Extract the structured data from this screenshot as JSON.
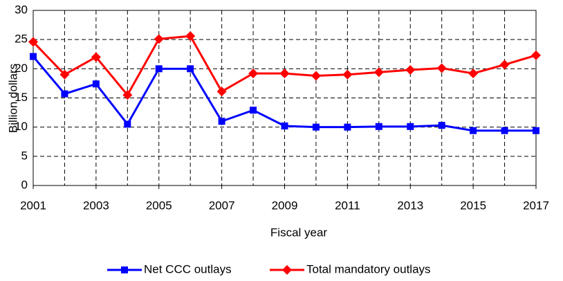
{
  "chart_data": {
    "type": "line",
    "x": [
      2001,
      2002,
      2003,
      2004,
      2005,
      2006,
      2007,
      2008,
      2009,
      2010,
      2011,
      2012,
      2013,
      2014,
      2015,
      2016,
      2017
    ],
    "series": [
      {
        "name": "Net CCC outlays",
        "color": "#0000ff",
        "marker": "square",
        "values": [
          22.1,
          15.7,
          17.4,
          10.5,
          20.0,
          20.0,
          11.0,
          12.9,
          10.2,
          10.0,
          10.0,
          10.1,
          10.1,
          10.3,
          9.4,
          9.4,
          9.4
        ]
      },
      {
        "name": "Total mandatory outlays",
        "color": "#ff0000",
        "marker": "diamond",
        "values": [
          24.6,
          19.0,
          22.0,
          15.5,
          25.1,
          25.6,
          16.1,
          19.2,
          19.2,
          18.8,
          19.0,
          19.4,
          19.8,
          20.1,
          19.2,
          20.7,
          22.3
        ]
      }
    ],
    "xlim": [
      2001,
      2017
    ],
    "xticks": [
      2001,
      2003,
      2005,
      2007,
      2009,
      2011,
      2013,
      2015,
      2017
    ],
    "xgrid": [
      2002,
      2003,
      2004,
      2005,
      2006,
      2007,
      2008,
      2009,
      2010,
      2011,
      2012,
      2013,
      2014,
      2015,
      2016
    ],
    "ylim": [
      0,
      30
    ],
    "yticks": [
      0,
      5,
      10,
      15,
      20,
      25,
      30
    ],
    "xlabel": "Fiscal year",
    "ylabel": "Billion dollars",
    "grid": true,
    "legend": "bottom"
  }
}
